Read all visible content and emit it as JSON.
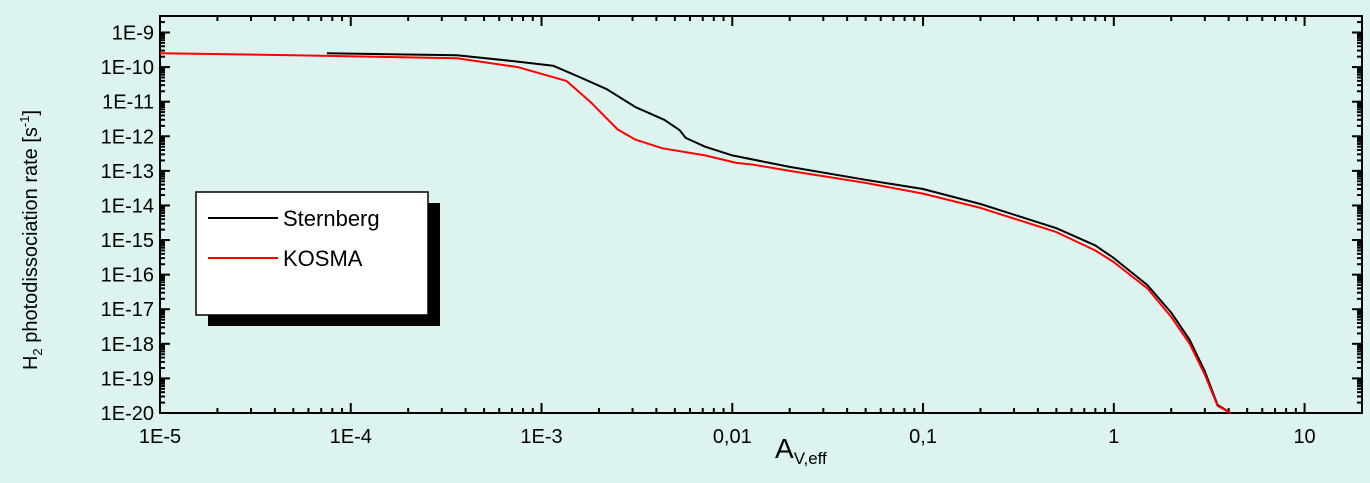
{
  "chart_data": {
    "type": "line",
    "xscale": "log",
    "yscale": "log",
    "xlim": [
      1e-05,
      20
    ],
    "ylim": [
      1e-20,
      3e-09
    ],
    "xlabel": {
      "main": "A",
      "sub": "V,eff"
    },
    "ylabel": {
      "pre": "H",
      "sub": "2",
      "main": " photodissociation rate [s",
      "sup": "-1",
      "post": "]"
    },
    "x_ticks": [
      {
        "value": 1e-05,
        "label": "1E-5"
      },
      {
        "value": 0.0001,
        "label": "1E-4"
      },
      {
        "value": 0.001,
        "label": "1E-3"
      },
      {
        "value": 0.01,
        "label": "0,01"
      },
      {
        "value": 0.1,
        "label": "0,1"
      },
      {
        "value": 1,
        "label": "1"
      },
      {
        "value": 10,
        "label": "10"
      }
    ],
    "y_ticks": [
      {
        "value": 1e-09,
        "label": "1E-9"
      },
      {
        "value": 1e-10,
        "label": "1E-10"
      },
      {
        "value": 1e-11,
        "label": "1E-11"
      },
      {
        "value": 1e-12,
        "label": "1E-12"
      },
      {
        "value": 1e-13,
        "label": "1E-13"
      },
      {
        "value": 1e-14,
        "label": "1E-14"
      },
      {
        "value": 1e-15,
        "label": "1E-15"
      },
      {
        "value": 1e-16,
        "label": "1E-16"
      },
      {
        "value": 1e-17,
        "label": "1E-17"
      },
      {
        "value": 1e-18,
        "label": "1E-18"
      },
      {
        "value": 1e-19,
        "label": "1E-19"
      },
      {
        "value": 1e-20,
        "label": "1E-20"
      }
    ],
    "legend_position": "left",
    "series": [
      {
        "name": "Sternberg",
        "color": "#000000",
        "points": [
          [
            7.5e-05,
            2.5e-10
          ],
          [
            0.00036,
            2.2e-10
          ],
          [
            0.0007,
            1.5e-10
          ],
          [
            0.00115,
            1.1e-10
          ],
          [
            0.0016,
            5e-11
          ],
          [
            0.0022,
            2.3e-11
          ],
          [
            0.0031,
            7e-12
          ],
          [
            0.0044,
            3e-12
          ],
          [
            0.0053,
            1.5e-12
          ],
          [
            0.0057,
            9e-13
          ],
          [
            0.0072,
            5e-13
          ],
          [
            0.01,
            2.8e-13
          ],
          [
            0.02,
            1.3e-13
          ],
          [
            0.05,
            5.5e-14
          ],
          [
            0.1,
            3e-14
          ],
          [
            0.2,
            1.1e-14
          ],
          [
            0.5,
            2.2e-15
          ],
          [
            0.8,
            7e-16
          ],
          [
            1,
            3e-16
          ],
          [
            1.5,
            5e-17
          ],
          [
            2,
            8e-18
          ],
          [
            2.5,
            1.3e-18
          ],
          [
            3,
            1.6e-19
          ],
          [
            3.5,
            1.7e-20
          ],
          [
            4.1,
            1e-20
          ]
        ]
      },
      {
        "name": "KOSMA",
        "color": "#ff0000",
        "points": [
          [
            1e-05,
            2.5e-10
          ],
          [
            5e-05,
            2.2e-10
          ],
          [
            0.00036,
            1.8e-10
          ],
          [
            0.00075,
            1e-10
          ],
          [
            0.00135,
            4e-11
          ],
          [
            0.0018,
            1e-11
          ],
          [
            0.0025,
            1.6e-12
          ],
          [
            0.0031,
            8e-13
          ],
          [
            0.0043,
            4.5e-13
          ],
          [
            0.0072,
            2.8e-13
          ],
          [
            0.0105,
            1.7e-13
          ],
          [
            0.013,
            1.5e-13
          ],
          [
            0.02,
            1e-13
          ],
          [
            0.05,
            4.5e-14
          ],
          [
            0.1,
            2.2e-14
          ],
          [
            0.2,
            8.5e-15
          ],
          [
            0.5,
            1.7e-15
          ],
          [
            0.8,
            5e-16
          ],
          [
            1,
            2.3e-16
          ],
          [
            1.5,
            4e-17
          ],
          [
            2,
            6e-18
          ],
          [
            2.5,
            1e-18
          ],
          [
            3,
            1.3e-19
          ],
          [
            3.5,
            1.6e-20
          ],
          [
            4.1,
            1e-20
          ]
        ]
      }
    ]
  }
}
